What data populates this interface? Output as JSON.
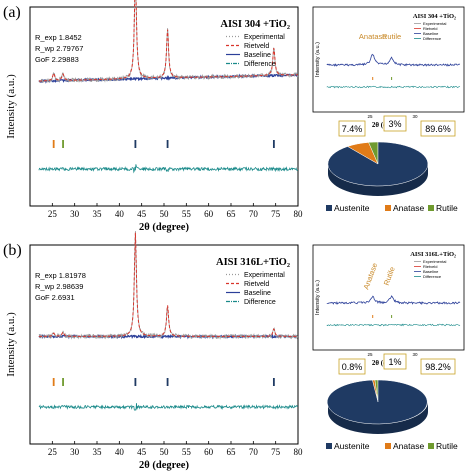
{
  "chart_data": [
    {
      "panel_label": "(a)",
      "type": "line",
      "title": "AISI 304 +TiO₂",
      "xlabel": "2θ (degree)",
      "ylabel": "Intensity (a.u.)",
      "xlim": [
        20,
        80
      ],
      "xticks": [
        25,
        30,
        35,
        40,
        45,
        50,
        55,
        60,
        65,
        70,
        75,
        80
      ],
      "stats": [
        "R_exp 1.8452",
        "R_wp 2.79767",
        "GoF 2.29883"
      ],
      "legend": [
        "Experimental",
        "Rietveld",
        "Baseline",
        "Difference"
      ],
      "legend_position": "top-right",
      "background_level": 0.38,
      "background_rise": 0.06,
      "peaks": [
        {
          "x": 25.3,
          "height": 0.07,
          "phase": "Anatase"
        },
        {
          "x": 27.4,
          "height": 0.06,
          "phase": "Rutile"
        },
        {
          "x": 43.6,
          "height": 0.95,
          "phase": "Austenite"
        },
        {
          "x": 50.8,
          "height": 0.45,
          "phase": "Austenite"
        },
        {
          "x": 74.6,
          "height": 0.26,
          "phase": "Austenite"
        }
      ],
      "tick_marks": [
        {
          "x": 25.3,
          "phase": "Anatase"
        },
        {
          "x": 27.4,
          "phase": "Rutile"
        },
        {
          "x": 43.6,
          "phase": "Austenite"
        },
        {
          "x": 50.8,
          "phase": "Austenite"
        },
        {
          "x": 74.6,
          "phase": "Austenite"
        }
      ],
      "inset": {
        "title": "AISI 304 +TiO₂",
        "xlabel": "2θ (degree)",
        "ylabel": "Intensity (a.u.)",
        "legend": [
          "Experimental",
          "Rietveld",
          "Baseline",
          "Difference"
        ],
        "annotations": [
          "Anatase",
          "Rutile"
        ],
        "xlim": [
          20,
          35
        ],
        "xticks": [
          25,
          30
        ],
        "peaks": [
          {
            "x": 25.3,
            "height": 0.35
          },
          {
            "x": 27.4,
            "height": 0.25
          }
        ]
      },
      "pie": {
        "type": "pie",
        "slices": [
          {
            "label": "Austenite",
            "value": 89.6,
            "text": "89.6%"
          },
          {
            "label": "Anatase",
            "value": 7.4,
            "text": "7.4%"
          },
          {
            "label": "Rutile",
            "value": 3.0,
            "text": "3%"
          }
        ],
        "legend": [
          "Austenite",
          "Anatase",
          "Rutile"
        ]
      }
    },
    {
      "panel_label": "(b)",
      "type": "line",
      "title": "AISI 316L+TiO₂",
      "xlabel": "2θ (degree)",
      "ylabel": "Intensity (a.u.)",
      "xlim": [
        20,
        80
      ],
      "xticks": [
        25,
        30,
        35,
        40,
        45,
        50,
        55,
        60,
        65,
        70,
        75,
        80
      ],
      "stats": [
        "R_exp 1.81978",
        "R_wp 2.98639",
        "GoF 2.6931"
      ],
      "legend": [
        "Experimental",
        "Rietveld",
        "Baseline",
        "Difference"
      ],
      "legend_position": "top-right",
      "background_level": 0.22,
      "background_rise": 0.0,
      "peaks": [
        {
          "x": 25.3,
          "height": 0.03,
          "phase": "Anatase"
        },
        {
          "x": 27.4,
          "height": 0.04,
          "phase": "Rutile"
        },
        {
          "x": 43.6,
          "height": 0.97,
          "phase": "Austenite"
        },
        {
          "x": 50.8,
          "height": 0.29,
          "phase": "Austenite"
        },
        {
          "x": 74.6,
          "height": 0.07,
          "phase": "Austenite"
        }
      ],
      "tick_marks": [
        {
          "x": 25.3,
          "phase": "Anatase"
        },
        {
          "x": 27.4,
          "phase": "Rutile"
        },
        {
          "x": 43.6,
          "phase": "Austenite"
        },
        {
          "x": 50.8,
          "phase": "Austenite"
        },
        {
          "x": 74.6,
          "phase": "Austenite"
        }
      ],
      "inset": {
        "title": "AISI 316L+TiO₂",
        "xlabel": "2θ (degree)",
        "ylabel": "Intensity (a.u.)",
        "legend": [
          "Experimental",
          "Rietveld",
          "Baseline",
          "Difference"
        ],
        "annotations": [
          "Anatase",
          "Rutile"
        ],
        "xlim": [
          20,
          35
        ],
        "xticks": [
          25,
          30
        ],
        "peaks": [
          {
            "x": 25.3,
            "height": 0.2
          },
          {
            "x": 27.4,
            "height": 0.22
          }
        ]
      },
      "pie": {
        "type": "pie",
        "slices": [
          {
            "label": "Austenite",
            "value": 98.2,
            "text": "98.2%"
          },
          {
            "label": "Anatase",
            "value": 0.8,
            "text": "0.8%"
          },
          {
            "label": "Rutile",
            "value": 1.0,
            "text": "1%"
          }
        ],
        "legend": [
          "Austenite",
          "Anatase",
          "Rutile"
        ]
      }
    }
  ],
  "colors": {
    "experimental": "#9a9a9a",
    "rietveld": "#d9342b",
    "baseline": "#2b3f99",
    "difference": "#1a8a8a",
    "austenite": "#1f3a63",
    "anatase": "#e07b18",
    "rutile": "#6f9a2e",
    "pie_label_border": "#c9a227"
  }
}
